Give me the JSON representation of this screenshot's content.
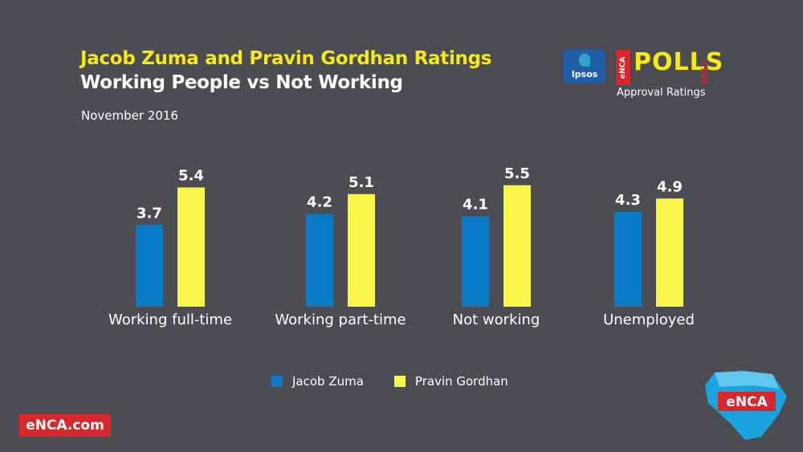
{
  "header": {
    "title": "Jacob Zuma and Pravin Gordhan Ratings",
    "subtitle": "Working People vs Not Working",
    "date": "November 2016"
  },
  "logos": {
    "ipsos": "Ipsos",
    "polls_word": "POLLS",
    "polls_brand": "eNCA",
    "polls_year": "2017",
    "approval": "Approval Ratings",
    "corner_brand": "eNCA"
  },
  "footer": {
    "site": "eNCA.com"
  },
  "colors": {
    "background": "#4b4d53",
    "zuma": "#0a79c6",
    "gordhan": "#fbf74a",
    "title_yellow": "#f7e916",
    "brand_red": "#d7262c"
  },
  "chart_data": {
    "type": "bar",
    "categories": [
      "Working full-time",
      "Working part-time",
      "Not working",
      "Unemployed"
    ],
    "series": [
      {
        "name": "Jacob Zuma",
        "values": [
          3.7,
          4.2,
          4.1,
          4.3
        ]
      },
      {
        "name": "Pravin Gordhan",
        "values": [
          5.4,
          5.1,
          5.5,
          4.9
        ]
      }
    ],
    "legend": [
      "Jacob Zuma",
      "Pravin Gordhan"
    ],
    "legend_position": "bottom",
    "grid": false
  }
}
